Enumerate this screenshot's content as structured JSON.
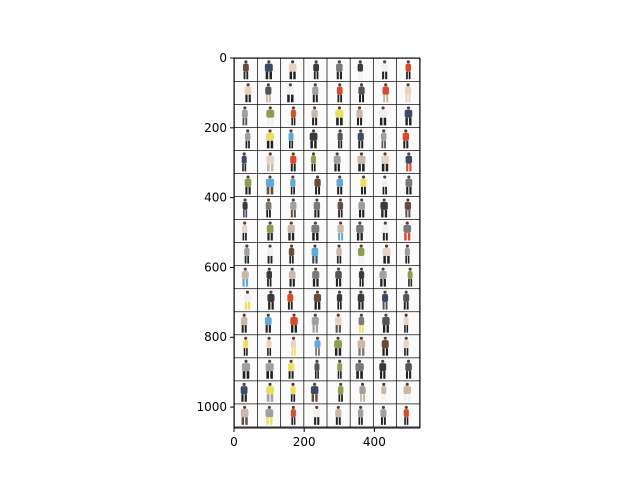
{
  "chart_data": {
    "type": "image",
    "xlim": [
      0,
      530
    ],
    "ylim": [
      1060,
      0
    ],
    "grid": {
      "rows": 16,
      "cols": 8,
      "tile_size": 64,
      "padding": 2,
      "pad_color": "#000000"
    },
    "xticks": [
      {
        "value": 0,
        "label": "0"
      },
      {
        "value": 200,
        "label": "200"
      },
      {
        "value": 400,
        "label": "400"
      }
    ],
    "yticks": [
      {
        "value": 0,
        "label": "0"
      },
      {
        "value": 200,
        "label": "200"
      },
      {
        "value": 400,
        "label": "400"
      },
      {
        "value": 600,
        "label": "600"
      },
      {
        "value": 800,
        "label": "800"
      },
      {
        "value": 1000,
        "label": "1000"
      }
    ],
    "palette": {
      "tile_bg": "#fbfbfb",
      "dark": "#222222",
      "accents": [
        "#3a3a3a",
        "#555555",
        "#7a7a7a",
        "#a0a0a0",
        "#c9b8a8",
        "#e8d2c0",
        "#3c4a6a",
        "#6a4a3a",
        "#d84a2a",
        "#e8e060",
        "#60a8d8",
        "#8aa050",
        "#f0f0f0"
      ]
    },
    "title": "",
    "xlabel": "",
    "ylabel": ""
  }
}
